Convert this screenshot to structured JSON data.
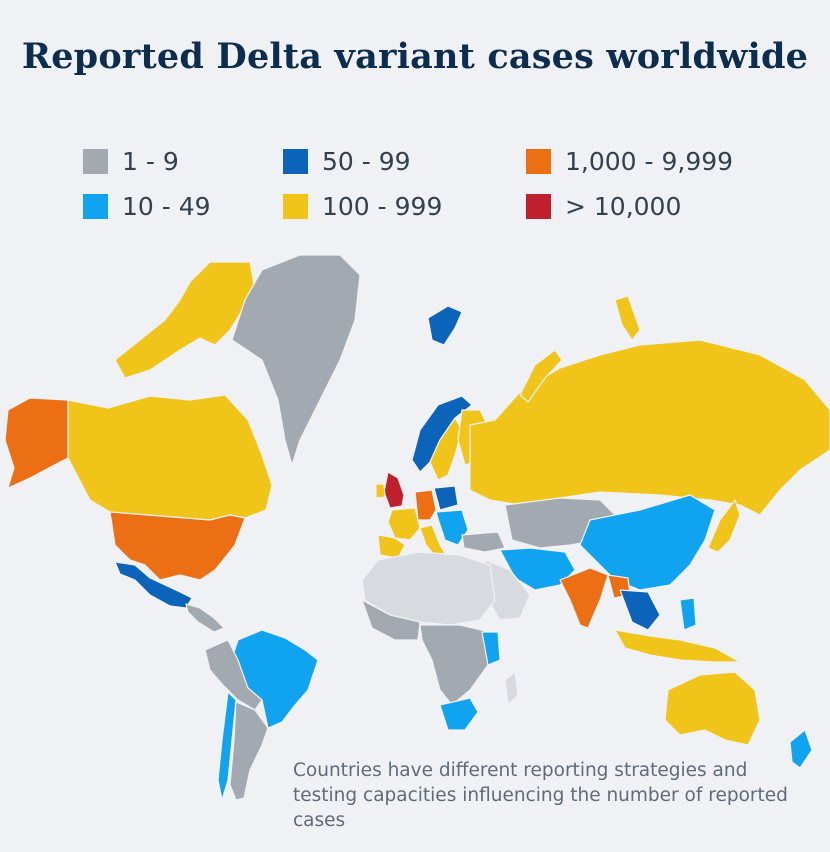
{
  "title": "Reported Delta variant cases worldwide",
  "legend": [
    {
      "label": "1 - 9",
      "color": "#a3a9b0"
    },
    {
      "label": "10 - 49",
      "color": "#10a3ef"
    },
    {
      "label": "50 - 99",
      "color": "#0b64b9"
    },
    {
      "label": "100 - 999",
      "color": "#f0c419"
    },
    {
      "label": "1,000 - 9,999",
      "color": "#ec6f14"
    },
    {
      "label": "> 10,000",
      "color": "#c0202e"
    }
  ],
  "no_data_color": "#d7dbe0",
  "note": "Countries have different reporting strategies and testing capacities influencing the number of reported cases",
  "regions": {
    "alaska": "1,000 - 9,999",
    "canada": "100 - 999",
    "canadian_arctic": "100 - 999",
    "greenland": "1 - 9",
    "usa": "1,000 - 9,999",
    "mexico": "50 - 99",
    "central_america": "1 - 9",
    "brazil": "10 - 49",
    "peru_bolivia": "1 - 9",
    "argentina": "1 - 9",
    "chile": "10 - 49",
    "uk": "> 10,000",
    "ireland": "100 - 999",
    "france": "100 - 999",
    "spain_portugal": "100 - 999",
    "germany": "1,000 - 9,999",
    "poland": "50 - 99",
    "italy": "100 - 999",
    "balkans": "10 - 49",
    "norway": "50 - 99",
    "sweden": "100 - 999",
    "finland": "100 - 999",
    "svalbard": "50 - 99",
    "russia": "100 - 999",
    "novaya_zemlya": "100 - 999",
    "turkey": "1 - 9",
    "kazakhstan_central_asia": "1 - 9",
    "iran_gulf": "10 - 49",
    "india": "1,000 - 9,999",
    "bangladesh": "1,000 - 9,999",
    "china": "10 - 49",
    "japan": "100 - 999",
    "thailand_indochina": "50 - 99",
    "indonesia": "100 - 999",
    "philippines": "10 - 49",
    "australia": "100 - 999",
    "new_zealand": "10 - 49",
    "north_africa": "no data",
    "west_africa": "1 - 9",
    "central_africa": "1 - 9",
    "kenya": "10 - 49",
    "south_africa": "10 - 49",
    "madagascar": "no data"
  }
}
